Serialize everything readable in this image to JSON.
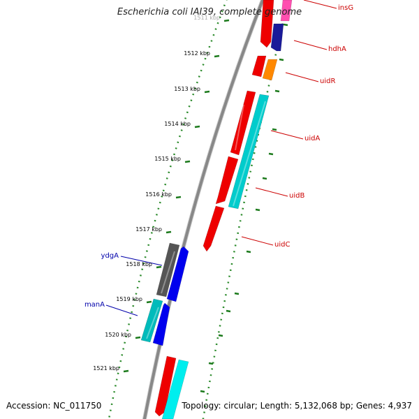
{
  "title": "Escherichia coli IAI39, complete genome",
  "footer": {
    "accession": "Accession: NC_011750",
    "summary": "Topology: circular; Length: 5,132,068 bp; Genes: 4,937"
  },
  "colors": {
    "backbone": "#888888",
    "tick_dots": "#2a8a2a",
    "label_forward": "#cc0000",
    "label_reverse": "#0000aa"
  },
  "scale": {
    "unit": "kbp",
    "ticks": [
      1511,
      1512,
      1513,
      1514,
      1515,
      1516,
      1517,
      1518,
      1519,
      1520,
      1521
    ]
  },
  "genes": {
    "forward_labels": [
      "insG",
      "hdhA",
      "uidR",
      "uidA",
      "uidB",
      "uidC"
    ],
    "reverse_labels": [
      "ydgA",
      "manA"
    ]
  }
}
